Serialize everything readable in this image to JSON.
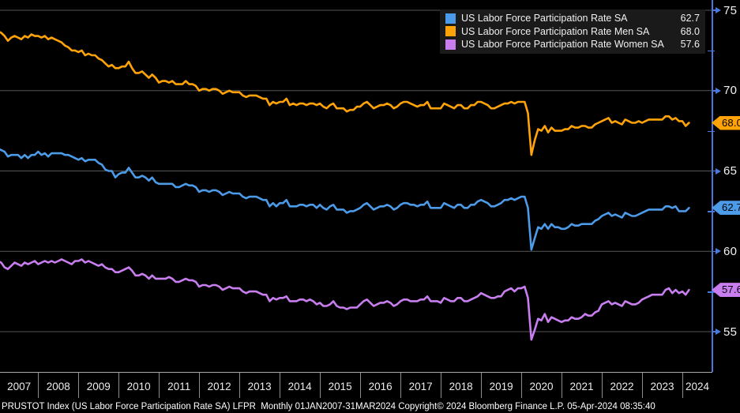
{
  "colors": {
    "background": "#000000",
    "axis_blue": "#4a78dd",
    "grid": "#555555",
    "x_axis_line": "#a8a8a8",
    "text_white": "#f0f0f0",
    "blue_series": "#4c9be8",
    "orange_series": "#ffa308",
    "purple_series": "#c97ef0"
  },
  "legend": {
    "items": [
      {
        "label": "US Labor Force Participation Rate SA",
        "value": "62.7",
        "color": "#4c9be8"
      },
      {
        "label": "US Labor Force Participation Rate Men SA",
        "value": "68.0",
        "color": "#ffa308"
      },
      {
        "label": "US Labor Force Participation Rate Women SA",
        "value": "57.6",
        "color": "#c97ef0"
      }
    ]
  },
  "footer": {
    "text": "PRUSTOT Index (US Labor Force Participation Rate SA) LFPR  Monthly 01JAN2007-31MAR2024 Copyright© 2024 Bloomberg Finance L.P. 05-Apr-2024 08:35:40"
  },
  "chart_data": {
    "type": "line",
    "title": "",
    "x_unit": "month",
    "x_start": "2007-01",
    "x_end": "2024-03",
    "x_tick_years": [
      "2007",
      "2008",
      "2009",
      "2010",
      "2011",
      "2012",
      "2013",
      "2014",
      "2015",
      "2016",
      "2017",
      "2018",
      "2019",
      "2020",
      "2021",
      "2022",
      "2023",
      "2024"
    ],
    "y_ticks": [
      75,
      70,
      65,
      60,
      55
    ],
    "y_minor_ticks": [
      72.5,
      67.5,
      62.5,
      57.5
    ],
    "y_gridlines": [
      75,
      70,
      65,
      60,
      55
    ],
    "ylim": [
      52.5,
      75.6
    ],
    "grid": "horizontal",
    "legend_position": "top-right",
    "axis_position": "right",
    "series": [
      {
        "id": "lfpr-total",
        "name": "US Labor Force Participation Rate SA",
        "color": "#4c9be8",
        "last_value_label": "62.7",
        "values": [
          66.4,
          66.3,
          66.2,
          65.9,
          66.0,
          66.0,
          66.0,
          65.8,
          66.0,
          65.8,
          66.0,
          66.0,
          66.2,
          66.0,
          66.1,
          65.9,
          66.1,
          66.1,
          66.1,
          66.1,
          66.0,
          66.0,
          65.9,
          65.8,
          65.7,
          65.8,
          65.6,
          65.7,
          65.7,
          65.7,
          65.5,
          65.4,
          65.1,
          65.0,
          65.0,
          64.6,
          64.8,
          64.9,
          64.9,
          65.2,
          64.9,
          64.6,
          64.6,
          64.7,
          64.6,
          64.4,
          64.6,
          64.3,
          64.2,
          64.2,
          64.2,
          64.2,
          64.2,
          64.0,
          64.0,
          64.1,
          64.2,
          64.1,
          64.1,
          64.0,
          63.7,
          63.8,
          63.8,
          63.7,
          63.8,
          63.8,
          63.7,
          63.5,
          63.6,
          63.7,
          63.6,
          63.6,
          63.6,
          63.4,
          63.3,
          63.4,
          63.4,
          63.4,
          63.3,
          63.2,
          63.2,
          62.8,
          63.0,
          62.8,
          63.0,
          63.0,
          63.2,
          62.8,
          62.8,
          62.8,
          62.9,
          62.9,
          62.8,
          62.9,
          62.9,
          62.7,
          62.9,
          62.7,
          62.6,
          62.8,
          62.9,
          62.6,
          62.6,
          62.6,
          62.4,
          62.5,
          62.5,
          62.6,
          62.7,
          62.9,
          63.0,
          62.8,
          62.6,
          62.7,
          62.8,
          62.8,
          62.9,
          62.8,
          62.6,
          62.7,
          62.9,
          63.0,
          63.0,
          62.9,
          62.9,
          62.8,
          62.9,
          62.9,
          63.1,
          62.7,
          62.7,
          62.7,
          62.7,
          63.0,
          62.9,
          62.8,
          62.7,
          62.9,
          62.9,
          62.7,
          62.7,
          62.9,
          62.9,
          63.1,
          63.2,
          63.1,
          63.0,
          62.8,
          62.8,
          62.9,
          63.0,
          63.2,
          63.2,
          63.3,
          63.2,
          63.3,
          63.4,
          63.4,
          62.7,
          60.1,
          60.8,
          61.5,
          61.4,
          61.7,
          61.4,
          61.7,
          61.5,
          61.5,
          61.4,
          61.4,
          61.5,
          61.7,
          61.6,
          61.6,
          61.7,
          61.7,
          61.7,
          61.7,
          61.9,
          62.0,
          62.2,
          62.3,
          62.4,
          62.2,
          62.3,
          62.2,
          62.1,
          62.4,
          62.3,
          62.2,
          62.2,
          62.3,
          62.4,
          62.5,
          62.6,
          62.6,
          62.6,
          62.6,
          62.6,
          62.8,
          62.8,
          62.7,
          62.8,
          62.5,
          62.5,
          62.5,
          62.7
        ]
      },
      {
        "id": "lfpr-men",
        "name": "US Labor Force Participation Rate Men SA",
        "color": "#ffa308",
        "last_value_label": "68.0",
        "values": [
          73.7,
          73.6,
          73.4,
          73.1,
          73.3,
          73.4,
          73.3,
          73.2,
          73.4,
          73.3,
          73.5,
          73.4,
          73.4,
          73.3,
          73.4,
          73.2,
          73.3,
          73.2,
          73.1,
          73.0,
          72.8,
          72.7,
          72.5,
          72.5,
          72.4,
          72.5,
          72.2,
          72.3,
          72.2,
          72.2,
          72.0,
          71.9,
          71.7,
          71.5,
          71.6,
          71.4,
          71.4,
          71.5,
          71.5,
          71.8,
          71.4,
          71.1,
          71.1,
          71.2,
          71.0,
          70.8,
          71.0,
          70.8,
          70.5,
          70.6,
          70.6,
          70.5,
          70.6,
          70.4,
          70.4,
          70.4,
          70.6,
          70.4,
          70.4,
          70.3,
          70.0,
          70.1,
          70.1,
          70.0,
          70.1,
          70.1,
          70.0,
          69.8,
          69.9,
          70.0,
          69.9,
          69.9,
          69.9,
          69.7,
          69.6,
          69.7,
          69.7,
          69.7,
          69.6,
          69.5,
          69.5,
          69.1,
          69.3,
          69.2,
          69.3,
          69.3,
          69.5,
          69.1,
          69.2,
          69.1,
          69.2,
          69.2,
          69.1,
          69.2,
          69.2,
          69.1,
          69.2,
          69.0,
          68.9,
          69.1,
          69.2,
          68.9,
          68.9,
          68.9,
          68.7,
          68.8,
          68.8,
          69.0,
          69.0,
          69.2,
          69.3,
          69.1,
          68.9,
          69.0,
          69.1,
          69.1,
          69.2,
          69.1,
          68.9,
          69.0,
          69.2,
          69.3,
          69.3,
          69.2,
          69.1,
          69.0,
          69.1,
          69.1,
          69.3,
          68.9,
          68.9,
          68.9,
          68.9,
          69.2,
          69.1,
          69.0,
          68.9,
          69.1,
          69.1,
          68.9,
          68.9,
          69.1,
          69.1,
          69.3,
          69.3,
          69.2,
          69.1,
          68.9,
          68.9,
          69.0,
          69.1,
          69.2,
          69.2,
          69.3,
          69.2,
          69.3,
          69.3,
          69.3,
          68.6,
          66.0,
          66.9,
          67.6,
          67.5,
          67.8,
          67.4,
          67.7,
          67.5,
          67.5,
          67.5,
          67.6,
          67.6,
          67.8,
          67.7,
          67.7,
          67.8,
          67.8,
          67.7,
          67.7,
          67.9,
          68.0,
          68.1,
          68.2,
          68.3,
          68.0,
          68.1,
          68.0,
          67.9,
          68.2,
          68.1,
          68.0,
          68.0,
          68.1,
          68.0,
          68.1,
          68.2,
          68.2,
          68.2,
          68.2,
          68.2,
          68.4,
          68.4,
          68.2,
          68.3,
          68.1,
          68.1,
          67.8,
          68.0
        ]
      },
      {
        "id": "lfpr-women",
        "name": "US Labor Force Participation Rate Women SA",
        "color": "#c97ef0",
        "last_value_label": "57.6",
        "values": [
          59.4,
          59.3,
          59.0,
          58.9,
          59.1,
          59.3,
          59.2,
          59.1,
          59.3,
          59.2,
          59.3,
          59.4,
          59.2,
          59.3,
          59.4,
          59.3,
          59.4,
          59.3,
          59.4,
          59.5,
          59.4,
          59.3,
          59.2,
          59.4,
          59.4,
          59.5,
          59.3,
          59.4,
          59.3,
          59.2,
          59.1,
          59.2,
          59.0,
          58.9,
          58.9,
          58.7,
          58.7,
          58.8,
          58.9,
          59.0,
          58.8,
          58.5,
          58.5,
          58.6,
          58.5,
          58.3,
          58.5,
          58.3,
          58.3,
          58.3,
          58.3,
          58.4,
          58.3,
          58.1,
          58.1,
          58.2,
          58.3,
          58.2,
          58.2,
          58.1,
          57.8,
          57.9,
          57.9,
          57.8,
          57.9,
          57.9,
          57.8,
          57.6,
          57.7,
          57.8,
          57.7,
          57.7,
          57.7,
          57.5,
          57.4,
          57.5,
          57.5,
          57.5,
          57.4,
          57.3,
          57.3,
          56.9,
          57.1,
          57.0,
          57.1,
          57.1,
          57.2,
          56.9,
          56.9,
          56.9,
          57.0,
          57.0,
          56.9,
          57.0,
          56.9,
          56.7,
          56.8,
          56.6,
          56.6,
          56.7,
          56.9,
          56.6,
          56.5,
          56.5,
          56.4,
          56.5,
          56.5,
          56.5,
          56.7,
          56.9,
          57.0,
          56.8,
          56.6,
          56.7,
          56.8,
          56.8,
          56.9,
          56.8,
          56.6,
          56.7,
          56.9,
          57.0,
          57.0,
          56.9,
          56.9,
          56.9,
          57.0,
          57.0,
          57.2,
          56.9,
          56.9,
          56.9,
          56.8,
          57.1,
          57.0,
          56.9,
          56.9,
          57.1,
          57.1,
          56.9,
          56.9,
          57.0,
          57.1,
          57.2,
          57.4,
          57.3,
          57.2,
          57.1,
          57.1,
          57.2,
          57.2,
          57.5,
          57.6,
          57.7,
          57.5,
          57.7,
          57.7,
          57.8,
          57.1,
          54.5,
          55.1,
          55.8,
          55.7,
          56.1,
          55.6,
          55.9,
          55.8,
          55.7,
          55.6,
          55.7,
          55.7,
          55.9,
          55.8,
          55.8,
          55.9,
          56.1,
          56.0,
          56.0,
          56.2,
          56.3,
          56.7,
          56.8,
          56.9,
          56.7,
          56.8,
          56.7,
          56.6,
          56.9,
          56.8,
          56.7,
          56.7,
          56.8,
          57.0,
          57.1,
          57.2,
          57.3,
          57.3,
          57.3,
          57.3,
          57.6,
          57.7,
          57.4,
          57.6,
          57.4,
          57.5,
          57.3,
          57.6
        ]
      }
    ]
  }
}
